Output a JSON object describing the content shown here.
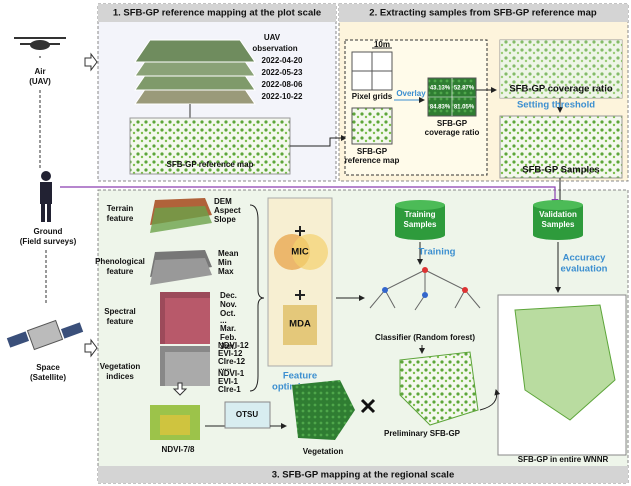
{
  "sources": {
    "air": [
      "Air",
      "(UAV)"
    ],
    "ground": [
      "Ground",
      "(Field surveys)"
    ],
    "space": [
      "Space",
      "(Satellite)"
    ]
  },
  "panel1": {
    "title": "1. SFB-GP reference mapping at the plot scale",
    "uav_label": [
      "UAV",
      "observation"
    ],
    "dates": [
      "2022-04-20",
      "2022-05-23",
      "2022-08-06",
      "2022-10-22"
    ],
    "reference_map": "SFB-GP reference map"
  },
  "panel2": {
    "title": "2. Extracting samples from SFB-GP reference map",
    "grid_size": "10m",
    "pixel_grids": "Pixel grids",
    "overlay": "Overlay",
    "reference_map": [
      "SFB-GP",
      "reference map"
    ],
    "ratios": [
      "43.13%",
      "52.87%",
      "84.83%",
      "81.05%"
    ],
    "coverage_small": [
      "SFB-GP",
      "coverage ratio"
    ],
    "coverage_ratio": "SFB-GP coverage ratio",
    "threshold": "Setting threshold",
    "samples": "SFB-GP Samples"
  },
  "panel3": {
    "title": "3.  SFB-GP mapping at the regional scale",
    "terrain": {
      "label": [
        "Terrain",
        "feature"
      ],
      "items": [
        "DEM",
        "Aspect",
        "Slope"
      ]
    },
    "phenological": {
      "label": [
        "Phenological",
        "feature"
      ],
      "items": [
        "Mean",
        "Min",
        "Max"
      ]
    },
    "spectral": {
      "label": [
        "Spectral",
        "feature"
      ],
      "items": [
        "Dec.",
        "Nov.",
        "Oct.",
        "...",
        "Mar.",
        "Feb.",
        "Jan."
      ]
    },
    "vegetation_indices": {
      "label": [
        "Vegetation",
        "indices"
      ],
      "items": [
        "NDVI-12",
        "EVI-12",
        "CIre-12",
        "......",
        "NDVI-1",
        "EVI-1",
        "CIre-1"
      ]
    },
    "mic": "MIC",
    "mda": "MDA",
    "feature_optimization": [
      "Feature",
      "optimization"
    ],
    "training_samples": [
      "Training",
      "Samples"
    ],
    "validation_samples": [
      "Validation",
      "Samples"
    ],
    "training": "Training",
    "accuracy": [
      "Accuracy",
      "evaluation"
    ],
    "classifier": "Classifier (Random forest)",
    "otsu": "OTSU",
    "ndvi": "NDVI-7/8",
    "vegetation": "Vegetation",
    "preliminary": "Preliminary SFB-GP",
    "final": "SFB-GP in entire WNNR"
  }
}
